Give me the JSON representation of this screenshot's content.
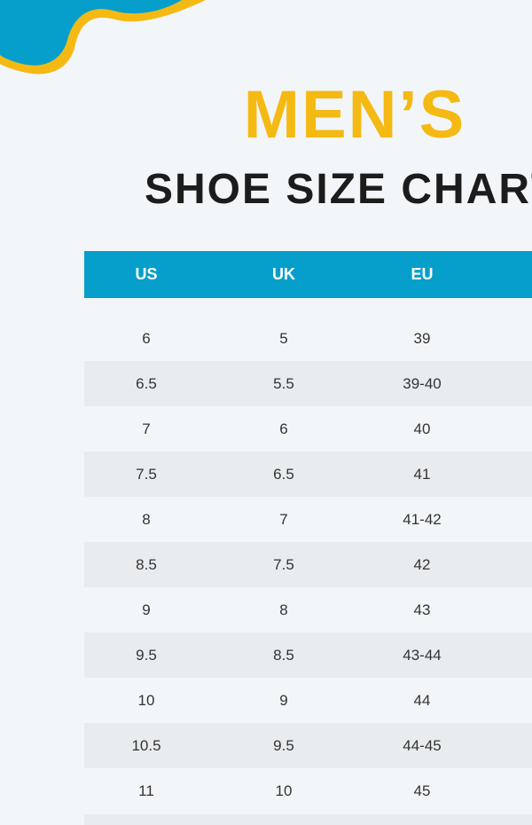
{
  "header": {
    "title": "MEN’S",
    "subtitle": "SHOE SIZE CHART"
  },
  "table": {
    "columns": [
      "US",
      "UK",
      "EU"
    ],
    "rows": [
      [
        "6",
        "5",
        "39"
      ],
      [
        "6.5",
        "5.5",
        "39-40"
      ],
      [
        "7",
        "6",
        "40"
      ],
      [
        "7.5",
        "6.5",
        "41"
      ],
      [
        "8",
        "7",
        "41-42"
      ],
      [
        "8.5",
        "7.5",
        "42"
      ],
      [
        "9",
        "8",
        "43"
      ],
      [
        "9.5",
        "8.5",
        "43-44"
      ],
      [
        "10",
        "9",
        "44"
      ],
      [
        "10.5",
        "9.5",
        "44-45"
      ],
      [
        "11",
        "10",
        "45"
      ]
    ]
  }
}
